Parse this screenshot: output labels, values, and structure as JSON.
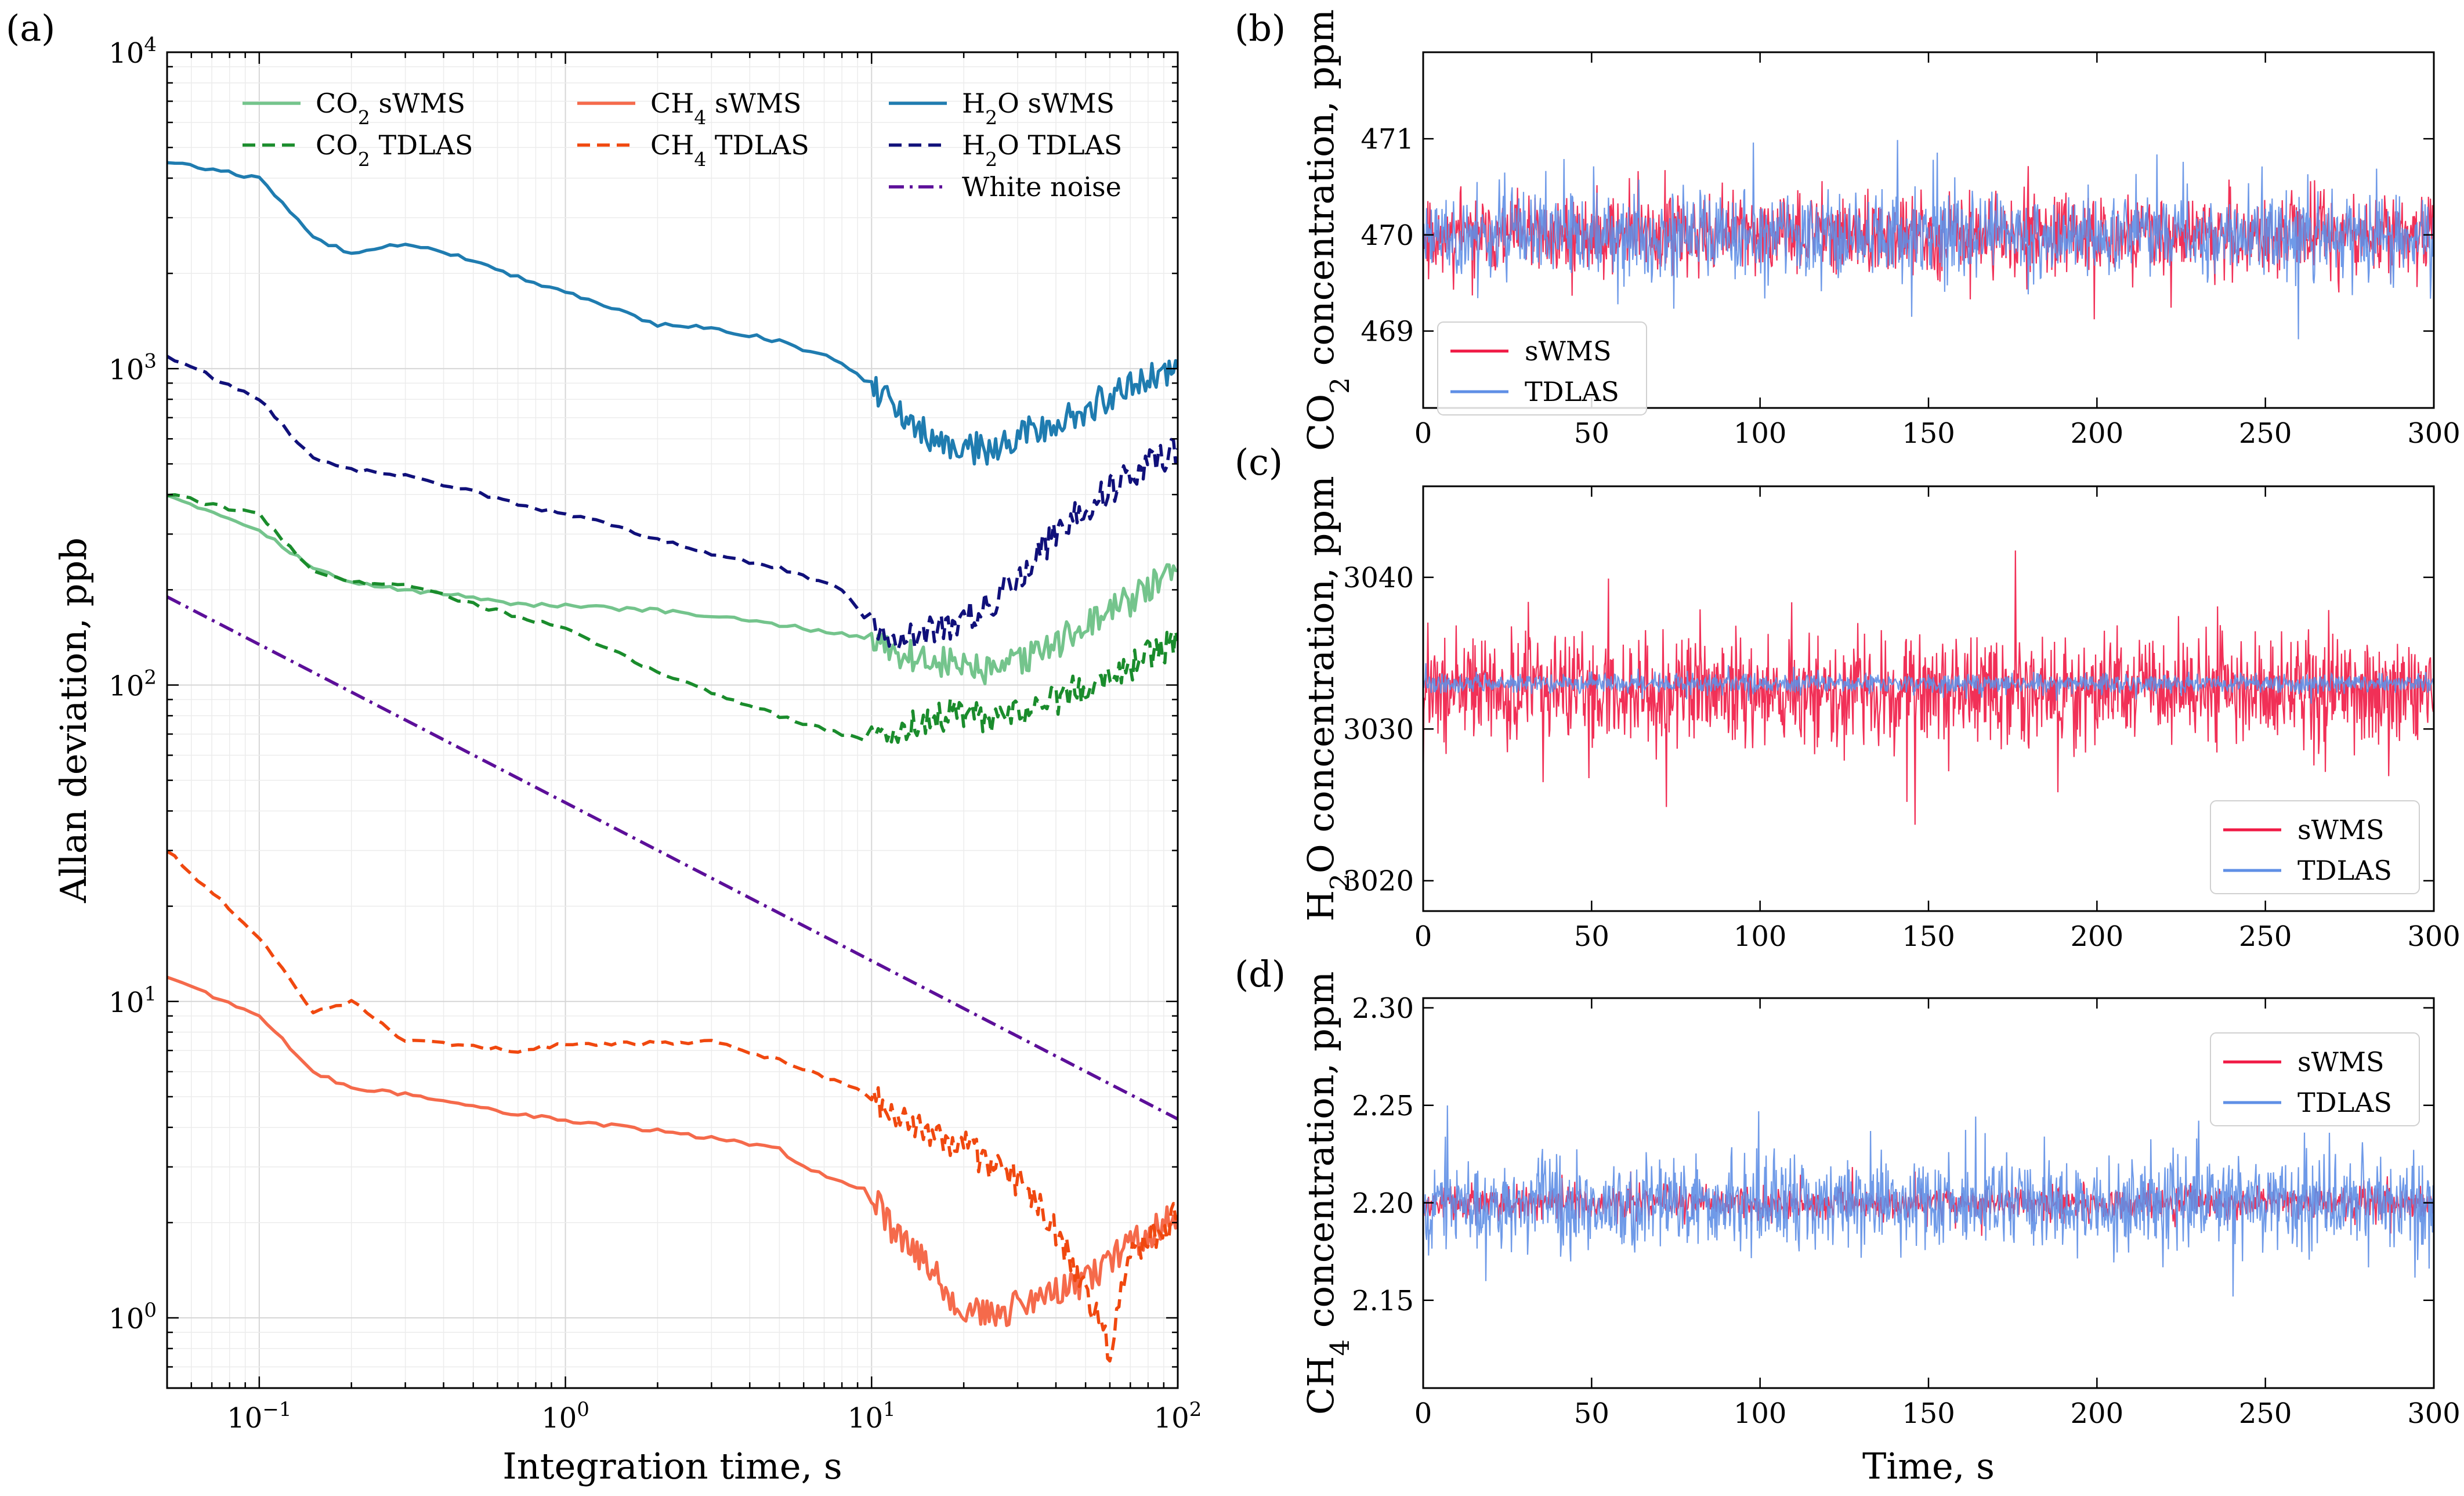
{
  "chart_data": [
    {
      "panel": "(a)",
      "type": "line",
      "xscale": "log",
      "yscale": "log",
      "xlabel": "Integration time, s",
      "ylabel": "Allan deviation, ppb",
      "xlim": [
        0.05,
        100
      ],
      "ylim": [
        0.6,
        10000
      ],
      "xticks": [
        {
          "v": 0.1,
          "b": "10",
          "e": "−1"
        },
        {
          "v": 1,
          "b": "10",
          "e": "0"
        },
        {
          "v": 10,
          "b": "10",
          "e": "1"
        },
        {
          "v": 100,
          "b": "10",
          "e": "2"
        }
      ],
      "yticks": [
        {
          "v": 1,
          "b": "10",
          "e": "0"
        },
        {
          "v": 10,
          "b": "10",
          "e": "1"
        },
        {
          "v": 100,
          "b": "10",
          "e": "2"
        },
        {
          "v": 1000,
          "b": "10",
          "e": "3"
        },
        {
          "v": 10000,
          "b": "10",
          "e": "4"
        }
      ],
      "grid": true,
      "legend_position": "top",
      "series": [
        {
          "name": "CO2 sWMS",
          "label_parts": [
            "CO",
            "2",
            " sWMS"
          ],
          "color": "#74c48c",
          "style": "solid",
          "x": [
            0.05,
            0.1,
            0.15,
            0.2,
            0.3,
            0.5,
            0.7,
            1,
            2,
            3,
            5,
            8,
            10,
            12,
            15,
            20,
            25,
            30,
            40,
            50,
            70,
            100
          ],
          "y": [
            400,
            310,
            235,
            210,
            200,
            190,
            180,
            178,
            172,
            165,
            155,
            145,
            140,
            128,
            120,
            115,
            108,
            118,
            135,
            155,
            185,
            230
          ]
        },
        {
          "name": "CO2 TDLAS",
          "label_parts": [
            "CO",
            "2",
            " TDLAS"
          ],
          "color": "#1a8c2c",
          "style": "dashed",
          "x": [
            0.05,
            0.1,
            0.15,
            0.2,
            0.3,
            0.5,
            1,
            2,
            3,
            5,
            8,
            10,
            12,
            15,
            20,
            25,
            30,
            40,
            50,
            70,
            100
          ],
          "y": [
            400,
            345,
            230,
            210,
            210,
            180,
            150,
            110,
            95,
            80,
            70,
            67,
            70,
            78,
            82,
            75,
            82,
            90,
            100,
            115,
            138
          ]
        },
        {
          "name": "CH4 sWMS",
          "label_parts": [
            "CH",
            "4",
            " sWMS"
          ],
          "color": "#f56a4b",
          "style": "solid",
          "x": [
            0.05,
            0.1,
            0.15,
            0.2,
            0.3,
            0.5,
            0.7,
            1,
            2,
            3,
            5,
            6,
            8,
            10,
            12,
            15,
            20,
            25,
            30,
            40,
            50,
            70,
            100
          ],
          "y": [
            12,
            9,
            6,
            5.3,
            5.1,
            4.7,
            4.4,
            4.2,
            3.9,
            3.7,
            3.4,
            3.0,
            2.7,
            2.5,
            1.8,
            1.5,
            1.05,
            1.0,
            1.1,
            1.2,
            1.3,
            1.7,
            2.1
          ]
        },
        {
          "name": "CH4 TDLAS",
          "label_parts": [
            "CH",
            "4",
            " TDLAS"
          ],
          "color": "#f0480f",
          "style": "dashed",
          "x": [
            0.05,
            0.1,
            0.15,
            0.2,
            0.3,
            0.5,
            0.7,
            1,
            2,
            3,
            5,
            8,
            10,
            12,
            15,
            20,
            25,
            30,
            40,
            50,
            60,
            70,
            100
          ],
          "y": [
            30,
            16,
            9.2,
            10,
            7.5,
            7.2,
            7.0,
            7.3,
            7.4,
            7.5,
            6.5,
            5.5,
            5.0,
            4.2,
            3.9,
            3.5,
            3.0,
            2.7,
            1.9,
            1.2,
            0.8,
            1.6,
            2.1
          ]
        },
        {
          "name": "H2O sWMS",
          "label_parts": [
            "H",
            "2",
            "O sWMS"
          ],
          "color": "#1f7cb0",
          "style": "solid",
          "x": [
            0.05,
            0.1,
            0.15,
            0.2,
            0.3,
            0.5,
            0.7,
            1,
            2,
            3,
            5,
            8,
            10,
            12,
            15,
            20,
            25,
            30,
            40,
            50,
            70,
            100
          ],
          "y": [
            4500,
            4000,
            2600,
            2300,
            2500,
            2200,
            1950,
            1750,
            1380,
            1350,
            1220,
            1050,
            880,
            740,
            620,
            560,
            560,
            620,
            680,
            740,
            900,
            1000
          ]
        },
        {
          "name": "H2O TDLAS",
          "label_parts": [
            "H",
            "2",
            "O TDLAS"
          ],
          "color": "#10107a",
          "style": "dashed",
          "x": [
            0.05,
            0.1,
            0.15,
            0.2,
            0.3,
            0.5,
            0.7,
            1,
            2,
            3,
            5,
            8,
            10,
            12,
            15,
            20,
            25,
            30,
            40,
            50,
            70,
            100
          ],
          "y": [
            1100,
            800,
            520,
            480,
            460,
            410,
            370,
            350,
            290,
            260,
            235,
            200,
            155,
            140,
            145,
            160,
            185,
            220,
            300,
            360,
            460,
            560
          ]
        },
        {
          "name": "White noise",
          "label_parts": [
            "White noise",
            "",
            ""
          ],
          "color": "#5c0f99",
          "style": "dashdot",
          "x": [
            0.05,
            100
          ],
          "y": [
            190,
            4.25
          ]
        }
      ]
    },
    {
      "panel": "(b)",
      "type": "line",
      "xlabel": "",
      "ylabel_parts": [
        "CO",
        "2",
        " concentration, ppm"
      ],
      "xlim": [
        0,
        300
      ],
      "ylim": [
        468.2,
        471.9
      ],
      "xticks": [
        0,
        50,
        100,
        150,
        200,
        250,
        300
      ],
      "yticks": [
        469,
        470,
        471
      ],
      "legend_position": "lower-left",
      "series": [
        {
          "name": "sWMS",
          "color": "#f01a45",
          "mean": 470.0,
          "amplitude": 0.55,
          "seed": 11
        },
        {
          "name": "TDLAS",
          "color": "#5f8fe6",
          "mean": 470.0,
          "amplitude": 0.6,
          "seed": 23
        }
      ]
    },
    {
      "panel": "(c)",
      "type": "line",
      "xlabel": "",
      "ylabel_parts": [
        "H",
        "2",
        "O concentration, ppm"
      ],
      "xlim": [
        0,
        300
      ],
      "ylim": [
        3018,
        3046
      ],
      "xticks": [
        0,
        50,
        100,
        150,
        200,
        250,
        300
      ],
      "yticks": [
        3020,
        3030,
        3040
      ],
      "legend_position": "lower-right",
      "series": [
        {
          "name": "sWMS",
          "color": "#f01a45",
          "mean": 3032.5,
          "amplitude": 5.0,
          "seed": 37
        },
        {
          "name": "TDLAS",
          "color": "#5f8fe6",
          "mean": 3033.0,
          "amplitude": 0.9,
          "seed": 41
        }
      ]
    },
    {
      "panel": "(d)",
      "type": "line",
      "xlabel": "Time, s",
      "ylabel_parts": [
        "CH",
        "4",
        " concentration, ppm"
      ],
      "xlim": [
        0,
        300
      ],
      "ylim": [
        2.105,
        2.305
      ],
      "xticks": [
        0,
        50,
        100,
        150,
        200,
        250,
        300
      ],
      "yticks": [
        2.15,
        2.2,
        2.25,
        2.3
      ],
      "legend_position": "upper-right",
      "series": [
        {
          "name": "sWMS",
          "color": "#f01a45",
          "mean": 2.2,
          "amplitude": 0.012,
          "seed": 53
        },
        {
          "name": "TDLAS",
          "color": "#5f8fe6",
          "mean": 2.2,
          "amplitude": 0.032,
          "seed": 67
        }
      ]
    }
  ]
}
